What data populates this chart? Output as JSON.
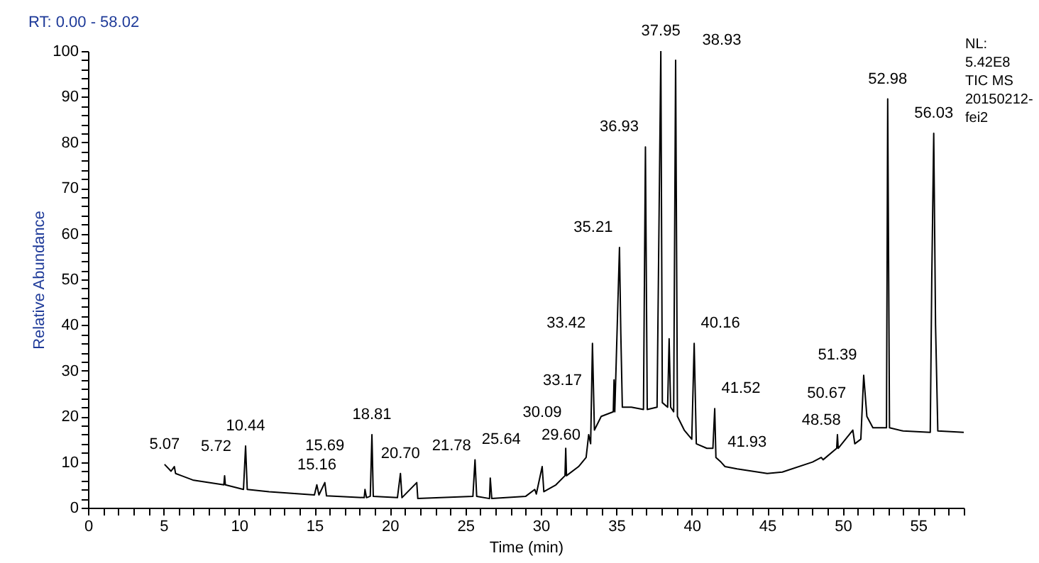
{
  "chart_data": {
    "type": "line",
    "title": "RT: 0.00 - 58.02",
    "xlabel": "Time (min)",
    "ylabel": "Relative Abundance",
    "xlim": [
      0,
      58.02
    ],
    "ylim": [
      0,
      100
    ],
    "xticks": [
      0,
      {
        "value": 1,
        "label": null
      },
      {
        "value": 2,
        "label": null
      },
      {
        "value": 3,
        "label": null
      },
      {
        "value": 4,
        "label": null
      },
      5,
      {
        "value": 6,
        "label": null
      },
      {
        "value": 7,
        "label": null
      },
      {
        "value": 8,
        "label": null
      },
      {
        "value": 9,
        "label": null
      },
      10,
      {
        "value": 11,
        "label": null
      },
      {
        "value": 12,
        "label": null
      },
      {
        "value": 13,
        "label": null
      },
      {
        "value": 14,
        "label": null
      },
      15,
      {
        "value": 16,
        "label": null
      },
      {
        "value": 17,
        "label": null
      },
      {
        "value": 18,
        "label": null
      },
      {
        "value": 19,
        "label": null
      },
      20,
      {
        "value": 21,
        "label": null
      },
      {
        "value": 22,
        "label": null
      },
      {
        "value": 23,
        "label": null
      },
      {
        "value": 24,
        "label": null
      },
      25,
      {
        "value": 26,
        "label": null
      },
      {
        "value": 27,
        "label": null
      },
      {
        "value": 28,
        "label": null
      },
      {
        "value": 29,
        "label": null
      },
      30,
      {
        "value": 31,
        "label": null
      },
      {
        "value": 32,
        "label": null
      },
      {
        "value": 33,
        "label": null
      },
      {
        "value": 34,
        "label": null
      },
      35,
      {
        "value": 36,
        "label": null
      },
      {
        "value": 37,
        "label": null
      },
      {
        "value": 38,
        "label": null
      },
      {
        "value": 39,
        "label": null
      },
      40,
      {
        "value": 41,
        "label": null
      },
      {
        "value": 42,
        "label": null
      },
      {
        "value": 43,
        "label": null
      },
      {
        "value": 44,
        "label": null
      },
      45,
      {
        "value": 46,
        "label": null
      },
      {
        "value": 47,
        "label": null
      },
      {
        "value": 48,
        "label": null
      },
      {
        "value": 49,
        "label": null
      },
      50,
      {
        "value": 51,
        "label": null
      },
      {
        "value": 52,
        "label": null
      },
      {
        "value": 53,
        "label": null
      },
      {
        "value": 54,
        "label": null
      },
      55,
      {
        "value": 56,
        "label": null
      },
      {
        "value": 57,
        "label": null
      },
      {
        "value": 58,
        "label": null
      }
    ],
    "yticks": [
      0,
      {
        "value": 2,
        "label": null
      },
      {
        "value": 4,
        "label": null
      },
      {
        "value": 6,
        "label": null
      },
      {
        "value": 8,
        "label": null
      },
      10,
      {
        "value": 12,
        "label": null
      },
      {
        "value": 14,
        "label": null
      },
      {
        "value": 16,
        "label": null
      },
      {
        "value": 18,
        "label": null
      },
      20,
      {
        "value": 22,
        "label": null
      },
      {
        "value": 24,
        "label": null
      },
      {
        "value": 26,
        "label": null
      },
      {
        "value": 28,
        "label": null
      },
      30,
      {
        "value": 32,
        "label": null
      },
      {
        "value": 34,
        "label": null
      },
      {
        "value": 36,
        "label": null
      },
      {
        "value": 38,
        "label": null
      },
      40,
      {
        "value": 42,
        "label": null
      },
      {
        "value": 44,
        "label": null
      },
      {
        "value": 46,
        "label": null
      },
      {
        "value": 48,
        "label": null
      },
      50,
      {
        "value": 52,
        "label": null
      },
      {
        "value": 54,
        "label": null
      },
      {
        "value": 56,
        "label": null
      },
      {
        "value": 58,
        "label": null
      },
      60,
      {
        "value": 62,
        "label": null
      },
      {
        "value": 64,
        "label": null
      },
      {
        "value": 66,
        "label": null
      },
      {
        "value": 68,
        "label": null
      },
      70,
      {
        "value": 72,
        "label": null
      },
      {
        "value": 74,
        "label": null
      },
      {
        "value": 76,
        "label": null
      },
      {
        "value": 78,
        "label": null
      },
      80,
      {
        "value": 82,
        "label": null
      },
      {
        "value": 84,
        "label": null
      },
      {
        "value": 86,
        "label": null
      },
      {
        "value": 88,
        "label": null
      },
      90,
      {
        "value": 92,
        "label": null
      },
      {
        "value": 94,
        "label": null
      },
      {
        "value": 96,
        "label": null
      },
      {
        "value": 98,
        "label": null
      },
      100
    ],
    "grid": false,
    "marker": "none",
    "line_style": "solid",
    "series": [
      {
        "color": "#000000",
        "x": [
          5.07,
          5.5,
          5.72,
          5.8,
          7,
          9.0,
          9.05,
          9.1,
          10.3,
          10.44,
          10.55,
          12,
          15,
          15.16,
          15.3,
          15.69,
          15.8,
          18.3,
          18.35,
          18.45,
          18.7,
          18.81,
          18.9,
          20.5,
          20.7,
          20.8,
          21.78,
          21.85,
          25.5,
          25.64,
          25.75,
          26.6,
          26.65,
          26.75,
          29,
          29.6,
          29.7,
          30.09,
          30.2,
          31,
          31.6,
          31.65,
          31.7,
          32.5,
          33,
          33.17,
          33.3,
          33.42,
          33.55,
          34,
          34.8,
          34.85,
          34.9,
          35.21,
          35.3,
          35.4,
          36,
          36.8,
          36.93,
          37.05,
          37.7,
          37.95,
          38.05,
          38.4,
          38.5,
          38.6,
          38.8,
          38.93,
          39.05,
          39.5,
          40,
          40.16,
          40.3,
          41,
          41.4,
          41.52,
          41.6,
          41.93,
          42.2,
          43,
          45,
          46,
          48,
          48.58,
          48.7,
          49.6,
          49.65,
          49.7,
          50.67,
          50.8,
          51.2,
          51.39,
          51.6,
          52,
          52.9,
          52.98,
          53.1,
          54,
          55.8,
          55.9,
          56.03,
          56.15,
          56.3,
          58.02
        ],
        "values": [
          9.5,
          8,
          9,
          7.5,
          6,
          5,
          7,
          5,
          4,
          13.5,
          4,
          3.5,
          2.8,
          5,
          2.8,
          5.5,
          2.6,
          2.2,
          4,
          2.2,
          2.5,
          16,
          2.5,
          2.2,
          7.5,
          2.2,
          5.5,
          2,
          2.5,
          10.5,
          2.5,
          2,
          6.5,
          2,
          2.5,
          4,
          3,
          9,
          3.5,
          5,
          7,
          13,
          7,
          9,
          11,
          16,
          14,
          36,
          17,
          20,
          21,
          28,
          21,
          57,
          38,
          22,
          22,
          21.5,
          79,
          21.5,
          22,
          100,
          23,
          22,
          37,
          22,
          21,
          98,
          20,
          17,
          15,
          36,
          14,
          13,
          13,
          21.7,
          11,
          10,
          9,
          8.5,
          7.5,
          7.8,
          10,
          11,
          10.5,
          13,
          16,
          13,
          17,
          14,
          15,
          29,
          20,
          17.5,
          17.5,
          89.5,
          17.5,
          16.8,
          16.5,
          50,
          82,
          40,
          16.8,
          16.5
        ]
      }
    ],
    "annotations": [
      {
        "text": "5.07",
        "x": 5.07,
        "y": 9.5
      },
      {
        "text": "5.72",
        "x": 5.72,
        "y": 9
      },
      {
        "text": "10.44",
        "x": 10.44,
        "y": 13.5
      },
      {
        "text": "15.16",
        "x": 15.16,
        "y": 5
      },
      {
        "text": "15.69",
        "x": 15.69,
        "y": 5.5
      },
      {
        "text": "18.81",
        "x": 18.81,
        "y": 16
      },
      {
        "text": "20.70",
        "x": 20.7,
        "y": 7.5
      },
      {
        "text": "21.78",
        "x": 21.78,
        "y": 5.5
      },
      {
        "text": "25.64",
        "x": 25.64,
        "y": 10.5
      },
      {
        "text": "29.60",
        "x": 29.6,
        "y": 4
      },
      {
        "text": "30.09",
        "x": 30.09,
        "y": 9
      },
      {
        "text": "33.17",
        "x": 33.17,
        "y": 16
      },
      {
        "text": "33.42",
        "x": 33.42,
        "y": 36
      },
      {
        "text": "35.21",
        "x": 35.21,
        "y": 57
      },
      {
        "text": "36.93",
        "x": 36.93,
        "y": 79
      },
      {
        "text": "37.95",
        "x": 37.95,
        "y": 100
      },
      {
        "text": "38.93",
        "x": 38.93,
        "y": 98
      },
      {
        "text": "40.16",
        "x": 40.16,
        "y": 36
      },
      {
        "text": "41.52",
        "x": 41.52,
        "y": 21.7
      },
      {
        "text": "41.93",
        "x": 41.93,
        "y": 10
      },
      {
        "text": "48.58",
        "x": 48.58,
        "y": 11
      },
      {
        "text": "50.67",
        "x": 50.67,
        "y": 17
      },
      {
        "text": "51.39",
        "x": 51.39,
        "y": 29
      },
      {
        "text": "52.98",
        "x": 52.98,
        "y": 89.5
      },
      {
        "text": "56.03",
        "x": 56.03,
        "y": 82
      },
      "NL:",
      "5.42E8",
      "TIC  MS",
      "20150212-",
      "fei2"
    ]
  }
}
